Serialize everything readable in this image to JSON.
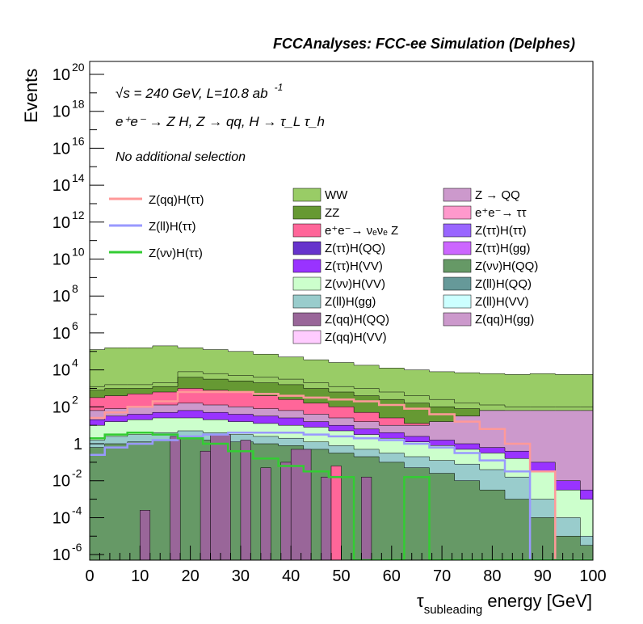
{
  "chart_data": {
    "type": "area",
    "title": "FCCAnalyses: FCC-ee Simulation (Delphes)",
    "xlabel_main": "τ",
    "xlabel_sub": "subleading",
    "xlabel_rest": " energy [GeV]",
    "ylabel": "Events",
    "xlim": [
      0,
      100
    ],
    "ylim_log10": [
      -6.3,
      20.7
    ],
    "yscale": "log",
    "x_ticks": [
      "0",
      "10",
      "20",
      "30",
      "40",
      "50",
      "60",
      "70",
      "80",
      "90",
      "100"
    ],
    "y_ticks": [
      {
        "label": "10",
        "exp": "-6",
        "value": -6
      },
      {
        "label": "10",
        "exp": "-4",
        "value": -4
      },
      {
        "label": "10",
        "exp": "-2",
        "value": -2
      },
      {
        "label": "1",
        "exp": "",
        "value": 0
      },
      {
        "label": "10",
        "exp": "2",
        "value": 2
      },
      {
        "label": "10",
        "exp": "4",
        "value": 4
      },
      {
        "label": "10",
        "exp": "6",
        "value": 6
      },
      {
        "label": "10",
        "exp": "8",
        "value": 8
      },
      {
        "label": "10",
        "exp": "10",
        "value": 10
      },
      {
        "label": "10",
        "exp": "12",
        "value": 12
      },
      {
        "label": "10",
        "exp": "14",
        "value": 14
      },
      {
        "label": "10",
        "exp": "16",
        "value": 16
      },
      {
        "label": "10",
        "exp": "18",
        "value": 18
      },
      {
        "label": "10",
        "exp": "20",
        "value": 20
      }
    ],
    "annotations": {
      "energy": "√s = 240 GeV, L=10.8 ab",
      "energy_exp": "-1",
      "process": "e⁺e⁻ → Z H, Z → qq, H → τ_L τ_h",
      "selection": "No additional selection"
    },
    "stack_total_log10": [
      {
        "x": 1,
        "y": 5.1
      },
      {
        "x": 5,
        "y": 5.2
      },
      {
        "x": 10,
        "y": 5.2
      },
      {
        "x": 15,
        "y": 5.3
      },
      {
        "x": 20,
        "y": 5.2
      },
      {
        "x": 25,
        "y": 5.1
      },
      {
        "x": 30,
        "y": 5.0
      },
      {
        "x": 35,
        "y": 4.85
      },
      {
        "x": 40,
        "y": 4.7
      },
      {
        "x": 45,
        "y": 4.55
      },
      {
        "x": 50,
        "y": 4.4
      },
      {
        "x": 55,
        "y": 4.25
      },
      {
        "x": 60,
        "y": 4.1
      },
      {
        "x": 65,
        "y": 4.0
      },
      {
        "x": 70,
        "y": 3.9
      },
      {
        "x": 75,
        "y": 3.85
      },
      {
        "x": 80,
        "y": 3.8
      },
      {
        "x": 85,
        "y": 3.75
      },
      {
        "x": 90,
        "y": 3.8
      },
      {
        "x": 95,
        "y": 3.75
      },
      {
        "x": 100,
        "y": 3.75
      }
    ],
    "stack_layers": [
      {
        "name": "WW",
        "color": "#99cc66",
        "log10": [
          3.1,
          3.2,
          3.2,
          3.3,
          3.9,
          3.8,
          3.7,
          3.6,
          3.5,
          3.3,
          3.1,
          3.0,
          2.8,
          2.6,
          2.4,
          2.2,
          2.1,
          2.0,
          2.0,
          2.0,
          2.0
        ]
      },
      {
        "name": "ZZ",
        "color": "#669933",
        "log10": [
          2.9,
          3.0,
          3.0,
          3.1,
          3.6,
          3.5,
          3.4,
          3.3,
          3.2,
          3.0,
          2.8,
          2.6,
          2.4,
          2.2,
          2.0,
          1.9,
          1.8,
          1.7,
          1.6,
          1.5,
          1.5
        ]
      },
      {
        "name": "e⁺e⁻→ νₑνₑ Z",
        "color": "#ff6699",
        "log10": [
          2.5,
          2.6,
          2.7,
          2.8,
          3.0,
          2.9,
          2.8,
          2.6,
          2.4,
          2.2,
          2.0,
          1.7,
          1.4,
          1.1,
          0.9,
          0.6,
          0.3,
          0.0,
          -0.2,
          -0.3,
          -0.3
        ]
      },
      {
        "name": "Z → QQ",
        "color": "#cc99cc",
        "log10": [
          1.8,
          1.9,
          2.0,
          2.1,
          2.2,
          2.1,
          2.0,
          1.9,
          1.8,
          1.6,
          1.4,
          1.2,
          1.0,
          1.0,
          1.2,
          1.5,
          1.8,
          1.8,
          1.8,
          1.8,
          1.8
        ]
      },
      {
        "name": "Z(ττ)H(VV)",
        "color": "#9933ff",
        "log10": [
          1.3,
          1.5,
          1.6,
          1.7,
          1.8,
          1.7,
          1.6,
          1.5,
          1.4,
          1.2,
          1.0,
          0.8,
          0.6,
          0.4,
          0.2,
          0.0,
          -0.2,
          -0.4,
          -1.0,
          -2.0,
          -2.5
        ]
      },
      {
        "name": "Z(νν)H(VV)",
        "color": "#ccffcc",
        "log10": [
          1.0,
          1.2,
          1.3,
          1.4,
          1.4,
          1.3,
          1.2,
          1.1,
          1.0,
          0.9,
          0.7,
          0.5,
          0.3,
          0.1,
          -0.1,
          -0.3,
          -0.5,
          -0.8,
          -1.5,
          -2.5,
          -3.0
        ]
      },
      {
        "name": "Z(ll)H(gg)",
        "color": "#99cccc",
        "log10": [
          0.2,
          0.4,
          0.5,
          0.6,
          0.7,
          0.6,
          0.5,
          0.4,
          0.3,
          0.1,
          -0.1,
          -0.3,
          -0.5,
          -0.7,
          -0.9,
          -1.1,
          -1.4,
          -1.8,
          -3.0,
          -4.0,
          -5.0
        ]
      },
      {
        "name": "Z(νν)H(QQ)",
        "color": "#669966",
        "log10": [
          -0.2,
          0.0,
          0.1,
          0.2,
          0.3,
          0.2,
          0.1,
          0.0,
          -0.1,
          -0.3,
          -0.5,
          -0.7,
          -1.0,
          -1.3,
          -1.6,
          -2.0,
          -2.5,
          -3.0,
          -4.0,
          -5.0,
          -5.5
        ]
      }
    ],
    "series": [
      {
        "name": "Z(qq)H(ττ)",
        "color": "#ff9999",
        "log10": [
          1.4,
          1.7,
          2.0,
          2.3,
          2.8,
          2.8,
          2.8,
          2.7,
          2.6,
          2.5,
          2.4,
          2.3,
          2.1,
          1.9,
          1.6,
          1.2,
          0.8,
          0.0,
          -1.5,
          -6.3,
          -6.3
        ]
      },
      {
        "name": "Z(ll)H(ττ)",
        "color": "#9999ff",
        "log10": [
          -0.6,
          -0.2,
          0.0,
          0.2,
          0.4,
          0.5,
          0.6,
          0.6,
          0.6,
          0.5,
          0.4,
          0.3,
          0.2,
          0.0,
          -0.2,
          -0.5,
          -0.9,
          -1.5,
          -6.3,
          -6.3,
          -6.3
        ]
      },
      {
        "name": "Z(νν)H(ττ)",
        "color": "#33cc33",
        "log10": [
          0.3,
          0.5,
          0.6,
          0.5,
          0.3,
          0.0,
          -0.4,
          -0.8,
          -1.2,
          -1.5,
          -1.8,
          -6.3,
          -6.3,
          -1.8,
          -6.3,
          -6.3,
          -6.3,
          -6.3,
          -6.3,
          -6.3,
          -6.3
        ]
      }
    ],
    "legend_left": [
      {
        "name": "Z(qq)H(ττ)",
        "color": "#ff9999",
        "style": "line"
      },
      {
        "name": "Z(ll)H(ττ)",
        "color": "#9999ff",
        "style": "line"
      },
      {
        "name": "Z(νν)H(ττ)",
        "color": "#33cc33",
        "style": "line"
      }
    ],
    "legend_mid": [
      {
        "name": "WW",
        "color": "#99cc66"
      },
      {
        "name": "ZZ",
        "color": "#669933"
      },
      {
        "name": "e⁺e⁻→ νₑνₑ Z",
        "color": "#ff6699"
      },
      {
        "name": "Z(ττ)H(QQ)",
        "color": "#6633cc"
      },
      {
        "name": "Z(ττ)H(VV)",
        "color": "#9933ff"
      },
      {
        "name": "Z(νν)H(VV)",
        "color": "#ccffcc"
      },
      {
        "name": "Z(ll)H(gg)",
        "color": "#99cccc"
      },
      {
        "name": "Z(qq)H(QQ)",
        "color": "#996699"
      },
      {
        "name": "Z(qq)H(VV)",
        "color": "#ffccff"
      }
    ],
    "legend_right": [
      {
        "name": "Z → QQ",
        "color": "#cc99cc"
      },
      {
        "name": "e⁺e⁻→ ττ",
        "color": "#ff99cc"
      },
      {
        "name": "Z(ττ)H(ττ)",
        "color": "#9966ff"
      },
      {
        "name": "Z(ττ)H(gg)",
        "color": "#cc66ff"
      },
      {
        "name": "Z(νν)H(QQ)",
        "color": "#669966"
      },
      {
        "name": "Z(ll)H(QQ)",
        "color": "#669999"
      },
      {
        "name": "Z(ll)H(VV)",
        "color": "#ccffff"
      },
      {
        "name": "Z(qq)H(gg)",
        "color": "#cc99cc"
      }
    ],
    "sparse_bars": [
      {
        "x0": 10,
        "x1": 12,
        "log10": -3.6,
        "color": "#996699"
      },
      {
        "x0": 16,
        "x1": 18,
        "log10": 0.4,
        "color": "#996699"
      },
      {
        "x0": 22,
        "x1": 24,
        "log10": -0.4,
        "color": "#996699"
      },
      {
        "x0": 24,
        "x1": 28,
        "log10": 0.5,
        "color": "#996699"
      },
      {
        "x0": 30,
        "x1": 32,
        "log10": 0.2,
        "color": "#996699"
      },
      {
        "x0": 34,
        "x1": 36,
        "log10": -1.3,
        "color": "#996699"
      },
      {
        "x0": 38,
        "x1": 40,
        "log10": -1.0,
        "color": "#996699"
      },
      {
        "x0": 40,
        "x1": 44,
        "log10": -0.3,
        "color": "#996699"
      },
      {
        "x0": 46,
        "x1": 48,
        "log10": -1.8,
        "color": "#996699"
      },
      {
        "x0": 48,
        "x1": 50,
        "log10": -1.2,
        "color": "#ff6699"
      },
      {
        "x0": 54,
        "x1": 56,
        "log10": -1.8,
        "color": "#996699"
      }
    ]
  }
}
